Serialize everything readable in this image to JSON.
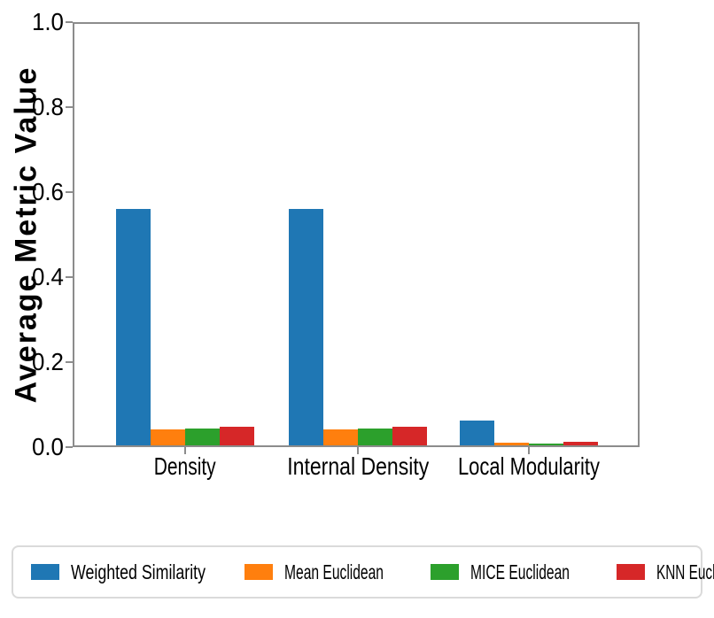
{
  "chart_data": {
    "type": "bar",
    "title": "",
    "xlabel": "",
    "ylabel": "Average Metric Value",
    "categories": [
      "Density",
      "Internal Density",
      "Local Modularity"
    ],
    "series": [
      {
        "name": "Weighted Similarity",
        "color": "#1f77b4",
        "values": [
          0.56,
          0.56,
          0.063
        ]
      },
      {
        "name": "Mean Euclidean",
        "color": "#ff7f0e",
        "values": [
          0.042,
          0.042,
          0.011
        ]
      },
      {
        "name": "MICE Euclidean",
        "color": "#2ca02c",
        "values": [
          0.044,
          0.044,
          0.009
        ]
      },
      {
        "name": "KNN Euclidean",
        "color": "#d62728",
        "values": [
          0.047,
          0.047,
          0.013
        ]
      }
    ],
    "ylim": [
      0.0,
      1.0
    ],
    "yticks": [
      "0.0",
      "0.2",
      "0.4",
      "0.6",
      "0.8",
      "1.0"
    ],
    "grid": false,
    "legend_position": "bottom",
    "axis_color": "#8c8c8c"
  }
}
